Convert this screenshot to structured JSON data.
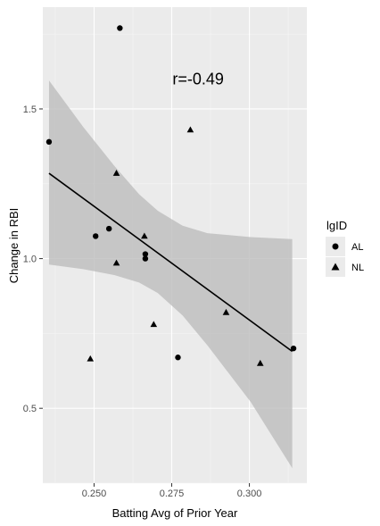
{
  "chart_data": {
    "type": "scatter",
    "xlabel": "Batting Avg of Prior Year",
    "ylabel": "Change in RBI",
    "xlim": [
      0.2335,
      0.3185
    ],
    "ylim": [
      0.25,
      1.84
    ],
    "x_ticks": [
      {
        "value": 0.25,
        "label": "0.250"
      },
      {
        "value": 0.275,
        "label": "0.275"
      },
      {
        "value": 0.3,
        "label": "0.300"
      }
    ],
    "y_ticks": [
      {
        "value": 0.5,
        "label": "0.5"
      },
      {
        "value": 1.0,
        "label": "1.0"
      },
      {
        "value": 1.5,
        "label": "1.5"
      }
    ],
    "grid": true,
    "annotation": {
      "text": "r=-0.49",
      "x": 0.2835,
      "y": 1.6
    },
    "legend": {
      "title": "lgID",
      "placement": "right",
      "entries": [
        {
          "label": "AL",
          "shape": "circle"
        },
        {
          "label": "NL",
          "shape": "triangle"
        }
      ]
    },
    "series": [
      {
        "name": "AL",
        "shape": "circle",
        "points": [
          {
            "x": 0.2355,
            "y": 1.39
          },
          {
            "x": 0.2505,
            "y": 1.075
          },
          {
            "x": 0.2548,
            "y": 1.1
          },
          {
            "x": 0.2583,
            "y": 1.77
          },
          {
            "x": 0.2665,
            "y": 1.015
          },
          {
            "x": 0.2665,
            "y": 1.0
          },
          {
            "x": 0.277,
            "y": 0.67
          },
          {
            "x": 0.3142,
            "y": 0.7
          }
        ]
      },
      {
        "name": "NL",
        "shape": "triangle",
        "points": [
          {
            "x": 0.2488,
            "y": 0.665
          },
          {
            "x": 0.2572,
            "y": 1.285
          },
          {
            "x": 0.2572,
            "y": 0.985
          },
          {
            "x": 0.2662,
            "y": 1.075
          },
          {
            "x": 0.2692,
            "y": 0.78
          },
          {
            "x": 0.281,
            "y": 1.43
          },
          {
            "x": 0.2925,
            "y": 0.82
          },
          {
            "x": 0.3035,
            "y": 0.65
          }
        ]
      }
    ],
    "fit": {
      "method": "lm",
      "line": [
        [
          0.2355,
          1.285
        ],
        [
          0.3138,
          0.69
        ]
      ],
      "band": [
        {
          "x": 0.2355,
          "lo": 0.98,
          "hi": 1.595
        },
        {
          "x": 0.2465,
          "lo": 0.965,
          "hi": 1.44
        },
        {
          "x": 0.2565,
          "lo": 0.945,
          "hi": 1.31
        },
        {
          "x": 0.2645,
          "lo": 0.92,
          "hi": 1.215
        },
        {
          "x": 0.2705,
          "lo": 0.885,
          "hi": 1.16
        },
        {
          "x": 0.2785,
          "lo": 0.81,
          "hi": 1.11
        },
        {
          "x": 0.2865,
          "lo": 0.71,
          "hi": 1.085
        },
        {
          "x": 0.3005,
          "lo": 0.52,
          "hi": 1.072
        },
        {
          "x": 0.3138,
          "lo": 0.3,
          "hi": 1.065
        }
      ]
    },
    "colors": {
      "panel_bg": "#ebebeb",
      "grid_major": "#ffffff",
      "band": "#bdbdbd",
      "line": "#000000",
      "point": "#000000"
    }
  }
}
